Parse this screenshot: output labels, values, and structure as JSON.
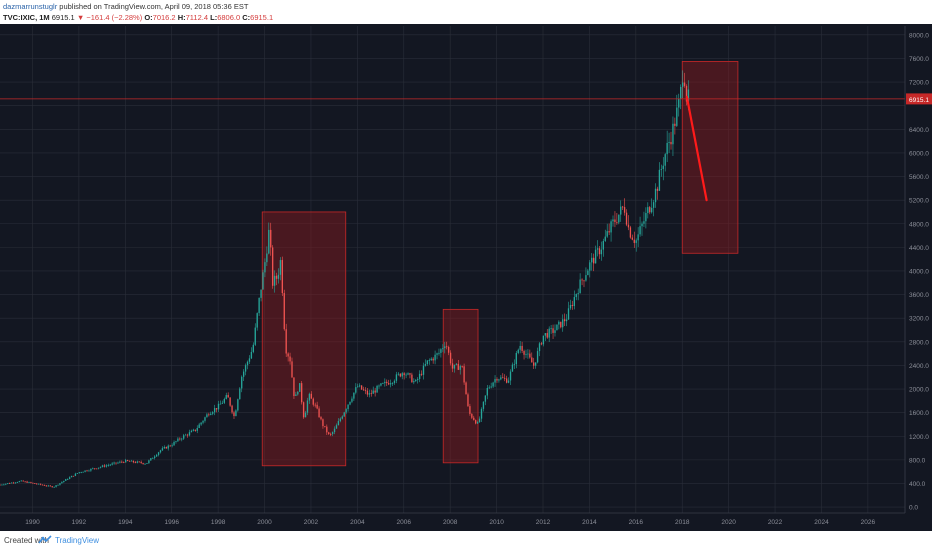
{
  "header": {
    "author": "dazmarrunstuglr",
    "published_text": "published on TradingView.com, April 09, 2018 05:36 EST",
    "symbol": "TVC:IXIC, 1M",
    "last": "6915.1",
    "arrow": "▼",
    "change": "−161.4 (−2.28%)",
    "open_label": "O:",
    "open": "7016.2",
    "high_label": "H:",
    "high": "7112.4",
    "low_label": "L:",
    "low": "6806.0",
    "close_label": "C:",
    "close": "6915.1"
  },
  "footer": {
    "created_with": "Created with",
    "brand": "TradingView",
    "logo_icon": "tradingview-logo-icon"
  },
  "colors": {
    "background": "#131722",
    "grid": "#2a2e39",
    "up": "#26a69a",
    "down": "#ef5350",
    "box_fill": "#8b1a1f",
    "box_stroke": "#c62828",
    "price_line": "#c62828",
    "arrow": "#ff1a1a",
    "axis_text": "#8c8f99"
  },
  "chart_data": {
    "type": "candlestick",
    "symbol": "TVC:IXIC",
    "interval": "1M",
    "x_ticks": [
      "1990",
      "1992",
      "1994",
      "1996",
      "1998",
      "2000",
      "2002",
      "2004",
      "2006",
      "2008",
      "2010",
      "2012",
      "2014",
      "2016",
      "2018",
      "2020",
      "2022",
      "2024",
      "2026"
    ],
    "y_ticks": [
      "8000.0",
      "7600.0",
      "7200.0",
      "6800.0",
      "6400.0",
      "6000.0",
      "5600.0",
      "5200.0",
      "4800.0",
      "4400.0",
      "4000.0",
      "3600.0",
      "3200.0",
      "2800.0",
      "2400.0",
      "2000.0",
      "1600.0",
      "1200.0",
      "800.0",
      "400.0",
      "0.0"
    ],
    "xlim": [
      1988.6,
      2027.6
    ],
    "ylim": [
      -100,
      8150
    ],
    "last_price": 6915.1,
    "last_price_label": "6915.1",
    "grid": true,
    "price_path": [
      [
        1988.6,
        380
      ],
      [
        1989.5,
        440
      ],
      [
        1990.5,
        370
      ],
      [
        1990.9,
        340
      ],
      [
        1991.5,
        480
      ],
      [
        1992.0,
        590
      ],
      [
        1993.0,
        690
      ],
      [
        1994.0,
        780
      ],
      [
        1994.9,
        740
      ],
      [
        1995.5,
        960
      ],
      [
        1996.0,
        1060
      ],
      [
        1996.5,
        1200
      ],
      [
        1997.0,
        1300
      ],
      [
        1997.6,
        1600
      ],
      [
        1998.0,
        1700
      ],
      [
        1998.4,
        1880
      ],
      [
        1998.7,
        1520
      ],
      [
        1999.0,
        2200
      ],
      [
        1999.5,
        2700
      ],
      [
        1999.8,
        3600
      ],
      [
        2000.0,
        4100
      ],
      [
        2000.2,
        4700
      ],
      [
        2000.35,
        3800
      ],
      [
        2000.55,
        3900
      ],
      [
        2000.7,
        4200
      ],
      [
        2000.9,
        2700
      ],
      [
        2001.1,
        2500
      ],
      [
        2001.3,
        1800
      ],
      [
        2001.5,
        2100
      ],
      [
        2001.7,
        1500
      ],
      [
        2001.9,
        1900
      ],
      [
        2002.2,
        1700
      ],
      [
        2002.5,
        1400
      ],
      [
        2002.8,
        1200
      ],
      [
        2003.0,
        1300
      ],
      [
        2003.4,
        1600
      ],
      [
        2003.8,
        1900
      ],
      [
        2004.0,
        2050
      ],
      [
        2004.5,
        1900
      ],
      [
        2005.0,
        2050
      ],
      [
        2005.5,
        2150
      ],
      [
        2006.0,
        2300
      ],
      [
        2006.5,
        2100
      ],
      [
        2007.0,
        2450
      ],
      [
        2007.5,
        2600
      ],
      [
        2007.8,
        2800
      ],
      [
        2008.1,
        2350
      ],
      [
        2008.5,
        2400
      ],
      [
        2008.8,
        1600
      ],
      [
        2009.2,
        1400
      ],
      [
        2009.6,
        2000
      ],
      [
        2010.0,
        2200
      ],
      [
        2010.5,
        2150
      ],
      [
        2011.0,
        2750
      ],
      [
        2011.6,
        2400
      ],
      [
        2012.0,
        2900
      ],
      [
        2012.5,
        3000
      ],
      [
        2013.0,
        3200
      ],
      [
        2013.5,
        3700
      ],
      [
        2014.0,
        4100
      ],
      [
        2014.5,
        4400
      ],
      [
        2015.0,
        4800
      ],
      [
        2015.5,
        5100
      ],
      [
        2015.7,
        4700
      ],
      [
        2016.0,
        4500
      ],
      [
        2016.5,
        5000
      ],
      [
        2016.9,
        5400
      ],
      [
        2017.2,
        5900
      ],
      [
        2017.6,
        6400
      ],
      [
        2017.9,
        6900
      ],
      [
        2018.05,
        7500
      ],
      [
        2018.2,
        6900
      ],
      [
        2018.3,
        6915
      ]
    ],
    "highlight_boxes": [
      {
        "x0": 1999.9,
        "x1": 2003.5,
        "y0": 700,
        "y1": 5000
      },
      {
        "x0": 2007.7,
        "x1": 2009.2,
        "y0": 750,
        "y1": 3350
      },
      {
        "x0": 2018.0,
        "x1": 2020.4,
        "y0": 4300,
        "y1": 7550
      }
    ],
    "projection_line": {
      "x0": 2018.2,
      "x1": 2019.05,
      "y0": 6950,
      "y1": 5200
    }
  }
}
